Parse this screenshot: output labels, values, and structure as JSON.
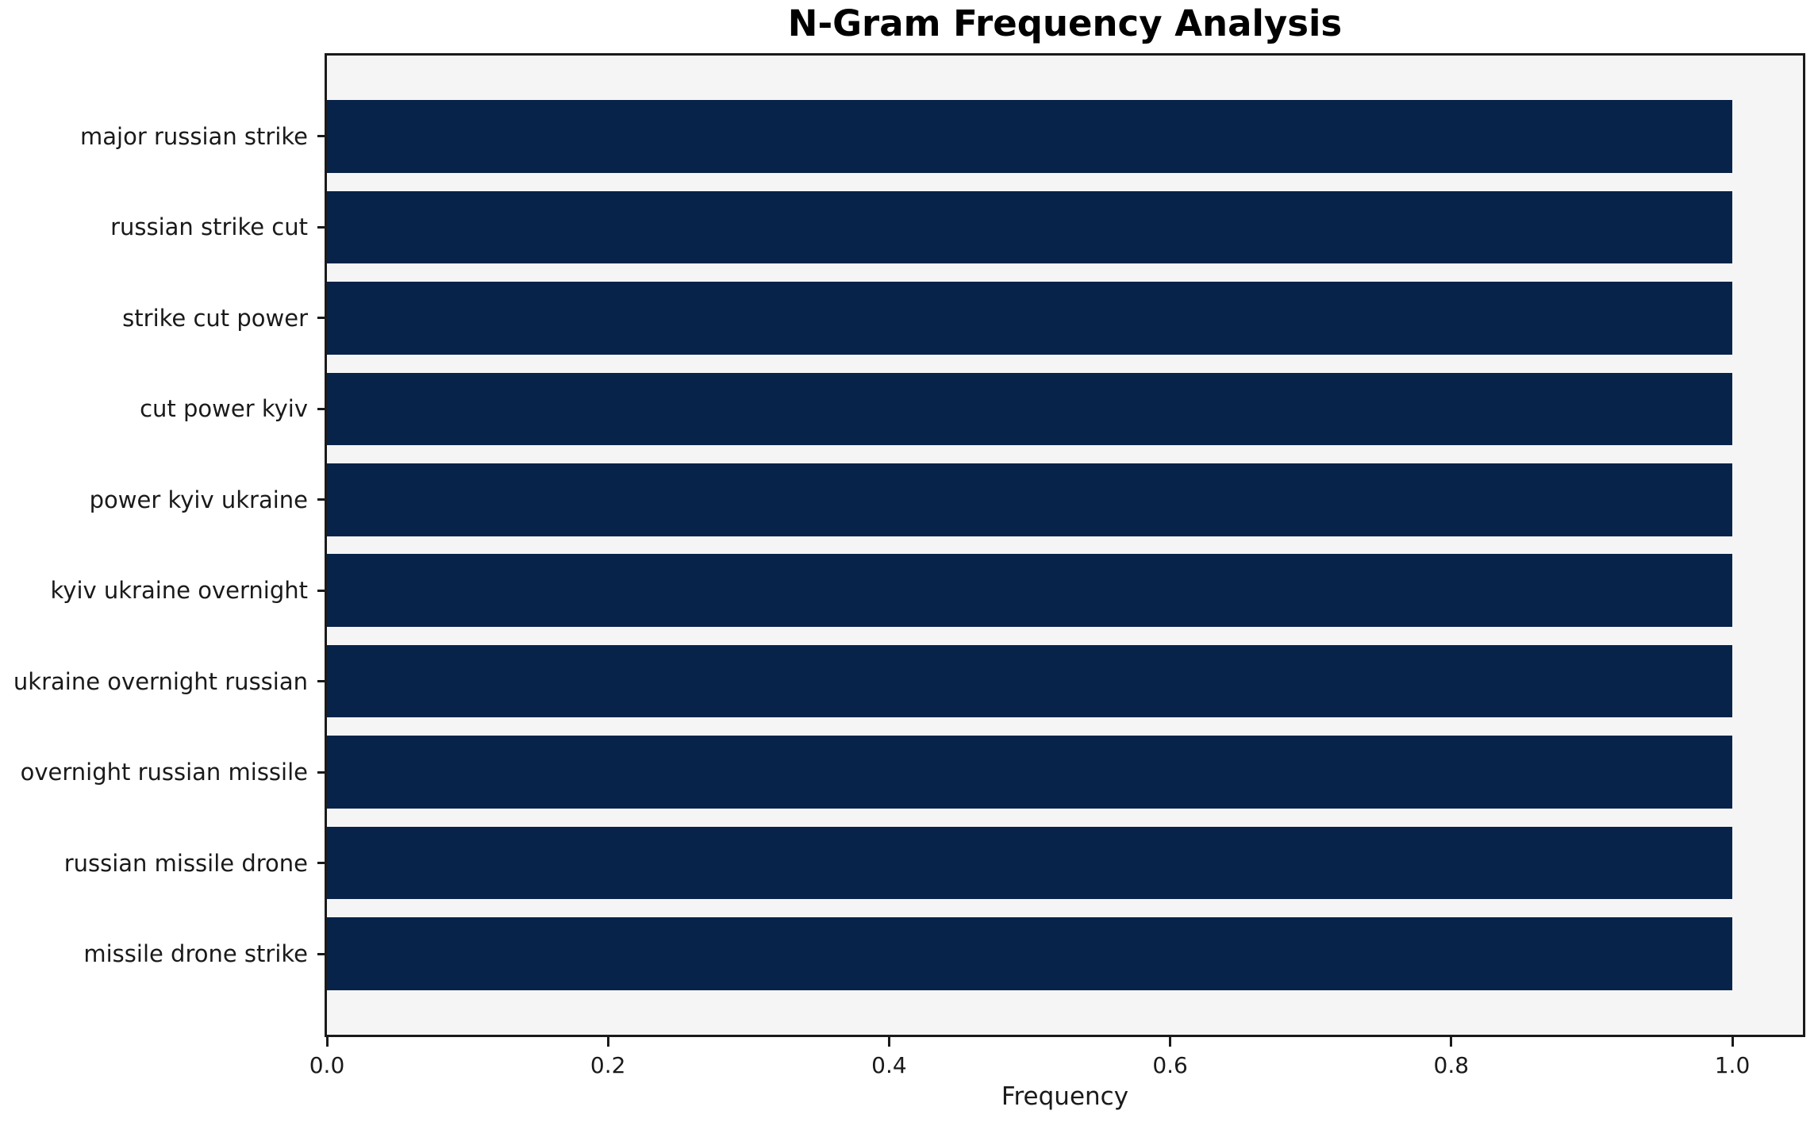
{
  "chart_data": {
    "type": "bar",
    "orientation": "horizontal",
    "title": "N-Gram Frequency Analysis",
    "xlabel": "Frequency",
    "ylabel": "",
    "categories": [
      "major russian strike",
      "russian strike cut",
      "strike cut power",
      "cut power kyiv",
      "power kyiv ukraine",
      "kyiv ukraine overnight",
      "ukraine overnight russian",
      "overnight russian missile",
      "russian missile drone",
      "missile drone strike"
    ],
    "values": [
      1.0,
      1.0,
      1.0,
      1.0,
      1.0,
      1.0,
      1.0,
      1.0,
      1.0,
      1.0
    ],
    "xticks": [
      "0.0",
      "0.2",
      "0.4",
      "0.6",
      "0.8",
      "1.0"
    ],
    "xtick_values": [
      0.0,
      0.2,
      0.4,
      0.6,
      0.8,
      1.0
    ],
    "xlim": [
      0,
      1.05
    ],
    "grid": false,
    "legend": null,
    "colors": {
      "bar": "#082349",
      "plot_background": "#f5f5f6",
      "figure_background": "#ffffff",
      "spine": "#1a1a1a",
      "text": "#1a1a1a"
    }
  }
}
